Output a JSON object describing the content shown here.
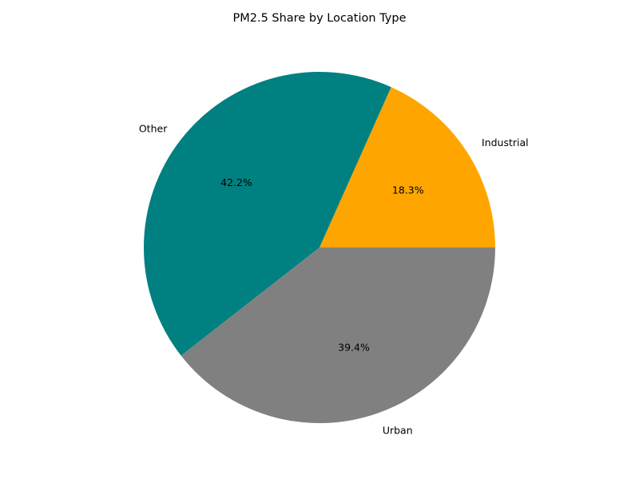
{
  "chart_data": {
    "type": "pie",
    "title": "PM2.5 Share by Location Type",
    "slices": [
      {
        "label": "Industrial",
        "value": 18.3,
        "pct_label": "18.3%",
        "color": "#FFA500"
      },
      {
        "label": "Other",
        "value": 42.2,
        "pct_label": "42.2%",
        "color": "#008080"
      },
      {
        "label": "Urban",
        "value": 39.4,
        "pct_label": "39.4%",
        "color": "#808080"
      }
    ],
    "start_angle_deg": 0,
    "direction": "counterclockwise",
    "legend": "none"
  }
}
